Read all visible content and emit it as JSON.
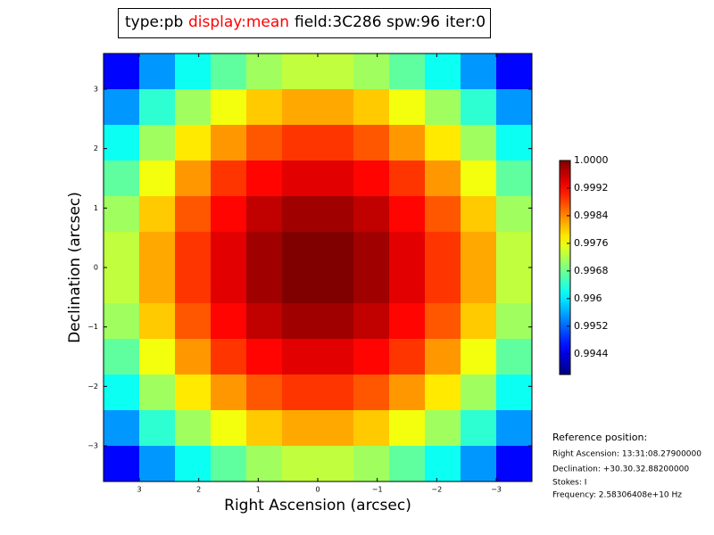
{
  "chart_data": {
    "type": "heatmap",
    "title_items": [
      {
        "text": "type:pb",
        "color": "#000000"
      },
      {
        "text": "display:mean",
        "color": "#ff0000"
      },
      {
        "text": "field:3C286",
        "color": "#000000"
      },
      {
        "text": "spw:96",
        "color": "#000000"
      },
      {
        "text": "iter:0",
        "color": "#000000"
      }
    ],
    "xlabel": "Right Ascension (arcsec)",
    "ylabel": "Declination (arcsec)",
    "xlim": [
      3.6,
      -3.6
    ],
    "ylim": [
      -3.6,
      3.6
    ],
    "xticks": [
      3,
      2,
      1,
      0,
      {
        "value": -1,
        "label": "−1"
      },
      {
        "value": -2,
        "label": "−2"
      },
      {
        "value": -3,
        "label": "−3"
      }
    ],
    "yticks": [
      {
        "value": -3,
        "label": "−3"
      },
      {
        "value": -2,
        "label": "−2"
      },
      {
        "value": -1,
        "label": "−1"
      },
      0,
      1,
      2,
      3
    ],
    "x": [
      3.3,
      2.7,
      2.1,
      1.5,
      0.9,
      0.3,
      -0.3,
      -0.9,
      -1.5,
      -2.1,
      -2.7,
      -3.3
    ],
    "y": [
      3.3,
      2.7,
      2.1,
      1.5,
      0.9,
      0.3,
      -0.3,
      -0.9,
      -1.5,
      -2.1,
      -2.7,
      -3.3
    ],
    "z": [
      [
        0.9946,
        0.9955,
        0.9962,
        0.9967,
        0.9971,
        0.9973,
        0.9973,
        0.9971,
        0.9967,
        0.9962,
        0.9955,
        0.9946
      ],
      [
        0.9955,
        0.9964,
        0.9971,
        0.9976,
        0.998,
        0.9982,
        0.9982,
        0.998,
        0.9976,
        0.9971,
        0.9964,
        0.9955
      ],
      [
        0.9962,
        0.9971,
        0.9978,
        0.9983,
        0.9987,
        0.9989,
        0.9989,
        0.9987,
        0.9983,
        0.9978,
        0.9971,
        0.9962
      ],
      [
        0.9967,
        0.9976,
        0.9983,
        0.9989,
        0.9992,
        0.9994,
        0.9994,
        0.9992,
        0.9989,
        0.9983,
        0.9976,
        0.9967
      ],
      [
        0.9971,
        0.998,
        0.9987,
        0.9992,
        0.9996,
        0.9998,
        0.9998,
        0.9996,
        0.9992,
        0.9987,
        0.998,
        0.9971
      ],
      [
        0.9973,
        0.9982,
        0.9989,
        0.9994,
        0.9998,
        1.0,
        1.0,
        0.9998,
        0.9994,
        0.9989,
        0.9982,
        0.9973
      ],
      [
        0.9973,
        0.9982,
        0.9989,
        0.9994,
        0.9998,
        1.0,
        1.0,
        0.9998,
        0.9994,
        0.9989,
        0.9982,
        0.9973
      ],
      [
        0.9971,
        0.998,
        0.9987,
        0.9992,
        0.9996,
        0.9998,
        0.9998,
        0.9996,
        0.9992,
        0.9987,
        0.998,
        0.9971
      ],
      [
        0.9967,
        0.9976,
        0.9983,
        0.9989,
        0.9992,
        0.9994,
        0.9994,
        0.9992,
        0.9989,
        0.9983,
        0.9976,
        0.9967
      ],
      [
        0.9962,
        0.9971,
        0.9978,
        0.9983,
        0.9987,
        0.9989,
        0.9989,
        0.9987,
        0.9983,
        0.9978,
        0.9971,
        0.9962
      ],
      [
        0.9955,
        0.9964,
        0.9971,
        0.9976,
        0.998,
        0.9982,
        0.9982,
        0.998,
        0.9976,
        0.9971,
        0.9964,
        0.9955
      ],
      [
        0.9946,
        0.9955,
        0.9962,
        0.9967,
        0.9971,
        0.9973,
        0.9973,
        0.9971,
        0.9967,
        0.9962,
        0.9955,
        0.9946
      ]
    ],
    "colormap": "jet",
    "clim": [
      0.9938,
      1.0
    ],
    "cticks": [
      {
        "value": 1,
        "label": "1.0000"
      },
      0.9992,
      0.9984,
      0.9976,
      0.9968,
      0.996,
      0.9952,
      0.9944
    ],
    "annotation_title": "Reference position:",
    "annotations": [
      "Right Ascension: 13:31:08.27900000",
      "Declination: +30.30.32.88200000",
      "Stokes: I",
      "Frequency: 2.58306408e+10 Hz"
    ]
  }
}
